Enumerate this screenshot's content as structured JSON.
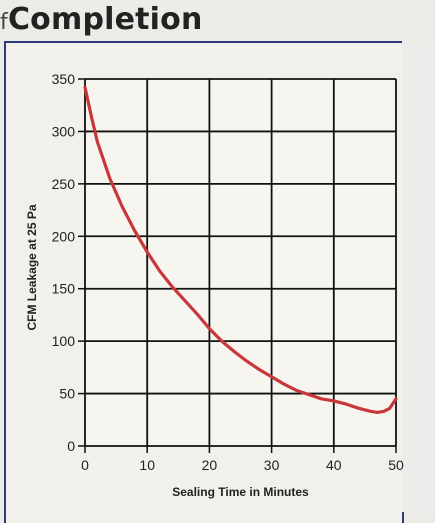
{
  "page": {
    "heading": "Completion",
    "heading_prefix": "f"
  },
  "chart_data": {
    "type": "line",
    "title": "",
    "xlabel": "Sealing Time in Minutes",
    "ylabel": "CFM Leakage at 25 Pa",
    "xlim": [
      0,
      50
    ],
    "ylim": [
      0,
      350
    ],
    "xticks": [
      0,
      10,
      20,
      30,
      40,
      50
    ],
    "yticks": [
      0,
      50,
      100,
      150,
      200,
      250,
      300,
      350
    ],
    "grid": true,
    "series": [
      {
        "color": "#c8373a",
        "x": [
          0,
          1,
          2,
          4,
          6,
          8,
          10,
          12,
          14,
          16,
          18,
          20,
          22,
          24,
          26,
          28,
          30,
          32,
          34,
          36,
          38,
          40,
          42,
          44,
          46,
          47,
          48,
          49,
          50
        ],
        "y": [
          342,
          315,
          290,
          255,
          228,
          205,
          185,
          167,
          152,
          139,
          126,
          112,
          100,
          90,
          81,
          73,
          66,
          59,
          53,
          49,
          45,
          43,
          40,
          36,
          33,
          32,
          33,
          36,
          45
        ]
      }
    ]
  }
}
